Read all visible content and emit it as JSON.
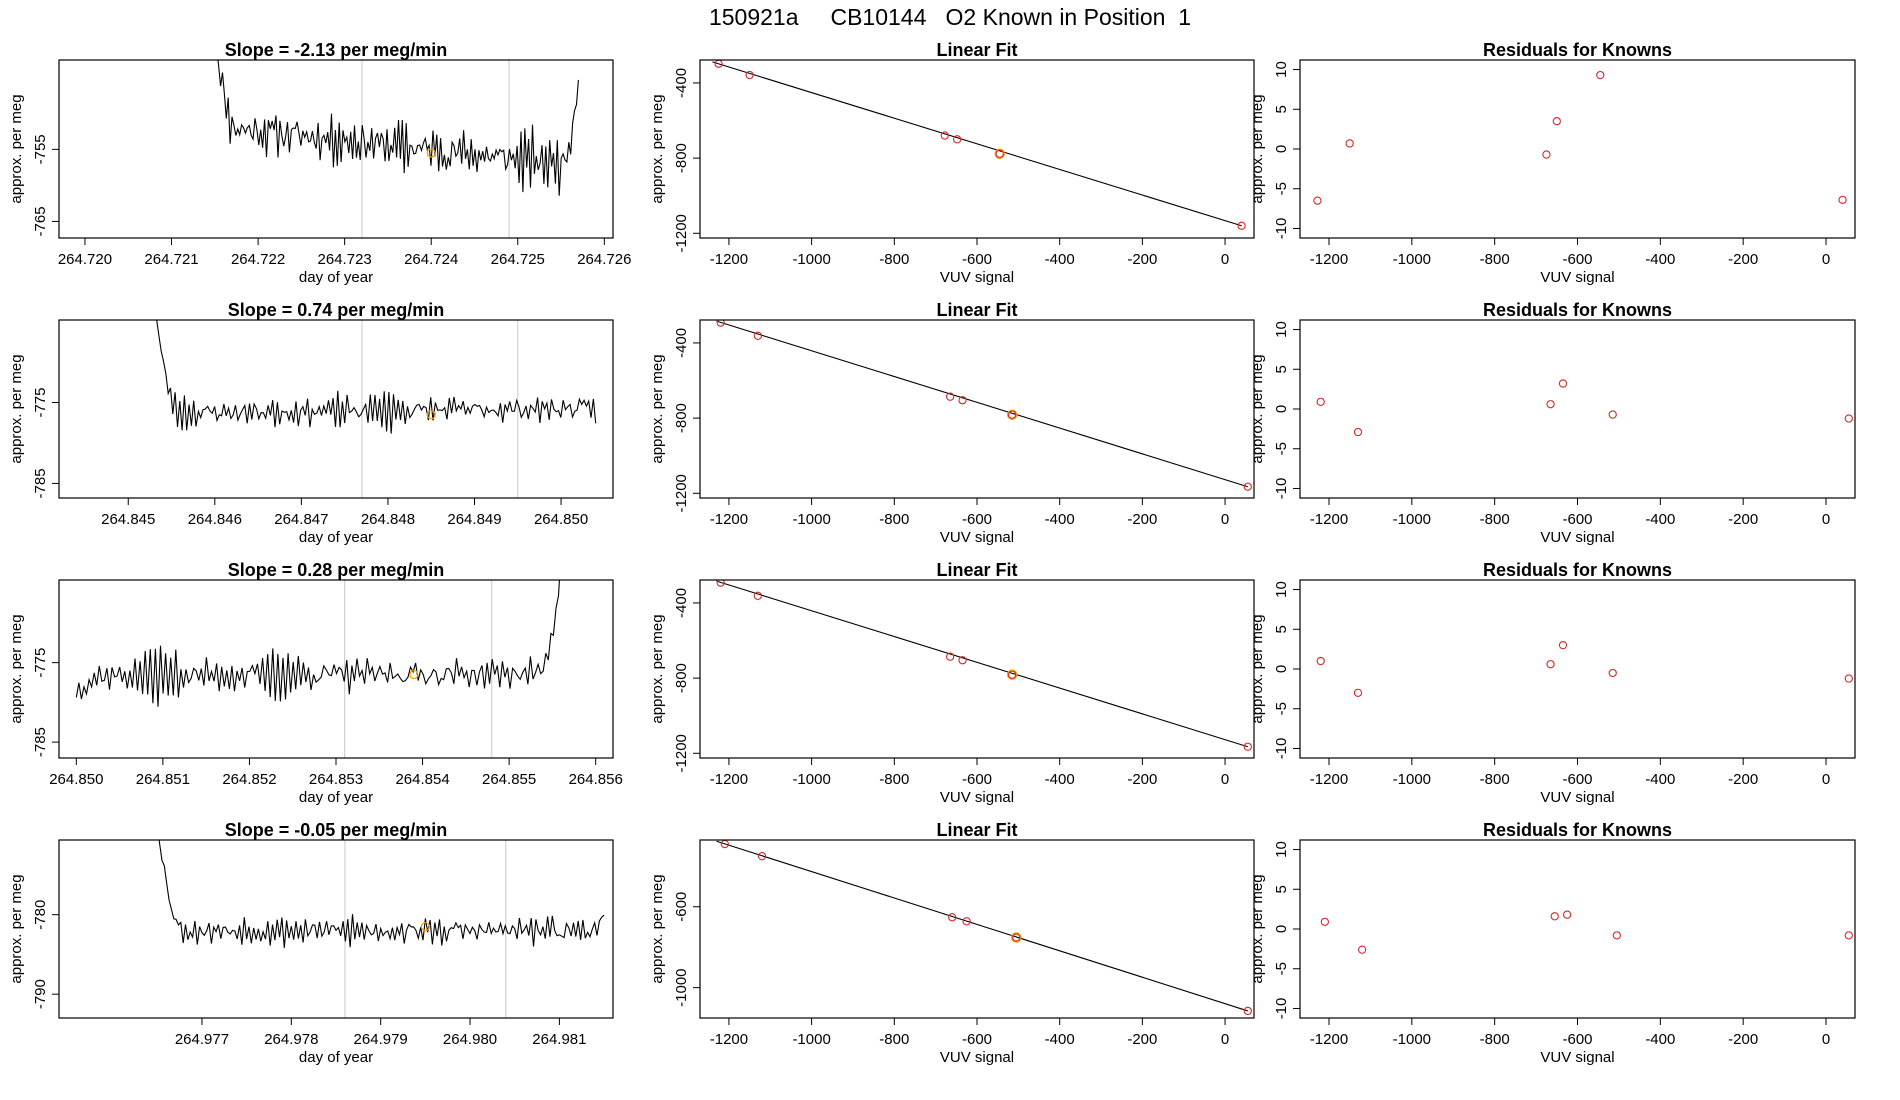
{
  "page": {
    "title": "150921a     CB10144   O2 Known in Position  1"
  },
  "colors": {
    "frame": "#000000",
    "trace": "#000000",
    "vline": "#c8c8c8",
    "known_point": "#d62728",
    "highlight_point": "#ff9a00"
  },
  "chart_data": [
    {
      "type": "line",
      "title": "Slope =  -2.13  per meg/min",
      "xlabel": "day of year",
      "ylabel": "approx. per meg",
      "xlim": [
        264.7197,
        264.7261
      ],
      "ylim": [
        -767.3,
        -742.6
      ],
      "xticks": [
        264.72,
        264.721,
        264.722,
        264.723,
        264.724,
        264.725,
        264.726
      ],
      "xtick_labels": [
        "264.720",
        "264.721",
        "264.722",
        "264.723",
        "264.724",
        "264.725",
        "264.726"
      ],
      "yticks": [
        -765,
        -755
      ],
      "ytick_labels": [
        "-765",
        "-755"
      ],
      "vlines": [
        264.7232,
        264.7249
      ],
      "highlight": {
        "x": 264.724,
        "y": -755.5
      },
      "trace": {
        "x_start": 264.7215,
        "x_end": 264.7257,
        "base": -754.5,
        "amp": 5.5,
        "seed": 11,
        "start_y": -741.0,
        "end_y": -742.0,
        "drift": -5.5
      }
    },
    {
      "type": "scatter",
      "title": "Linear Fit",
      "xlabel": "VUV signal",
      "ylabel": "approx. per meg",
      "xlim": [
        -1270,
        70
      ],
      "ylim": [
        -1225,
        -278
      ],
      "xticks": [
        -1200,
        -1000,
        -800,
        -600,
        -400,
        -200,
        0
      ],
      "xtick_labels": [
        "-1200",
        "-1000",
        "-800",
        "-600",
        "-400",
        "-200",
        "0"
      ],
      "yticks": [
        -1200,
        -800,
        -400
      ],
      "ytick_labels": [
        "-1200",
        "-800",
        "-400"
      ],
      "points": [
        [
          -1225,
          -298
        ],
        [
          -1150,
          -358
        ],
        [
          -678,
          -680
        ],
        [
          -648,
          -700
        ],
        [
          -545,
          -777
        ],
        [
          40,
          -1160
        ]
      ],
      "highlight_index": 4,
      "fit": [
        [
          -1240,
          -288
        ],
        [
          40,
          -1160
        ]
      ]
    },
    {
      "type": "scatter",
      "title": "Residuals for Knowns",
      "xlabel": "VUV signal",
      "ylabel": "approx. per meg",
      "xlim": [
        -1270,
        70
      ],
      "ylim": [
        -11.2,
        11.2
      ],
      "xticks": [
        -1200,
        -1000,
        -800,
        -600,
        -400,
        -200,
        0
      ],
      "xtick_labels": [
        "-1200",
        "-1000",
        "-800",
        "-600",
        "-400",
        "-200",
        "0"
      ],
      "yticks": [
        -10,
        -5,
        0,
        5,
        10
      ],
      "ytick_labels": [
        "-10",
        "-5",
        "0",
        "5",
        "10"
      ],
      "points": [
        [
          -1228,
          -6.5
        ],
        [
          -1150,
          0.7
        ],
        [
          -675,
          -0.7
        ],
        [
          -650,
          3.5
        ],
        [
          -545,
          9.3
        ],
        [
          40,
          -6.4
        ]
      ]
    },
    {
      "type": "line",
      "title": "Slope =  0.74  per meg/min",
      "xlabel": "day of year",
      "ylabel": "approx. per meg",
      "xlim": [
        264.8442,
        264.8506
      ],
      "ylim": [
        -786.8,
        -764.8
      ],
      "xticks": [
        264.845,
        264.846,
        264.847,
        264.848,
        264.849,
        264.85
      ],
      "xtick_labels": [
        "264.845",
        "264.846",
        "264.847",
        "264.848",
        "264.849",
        "264.850"
      ],
      "yticks": [
        -785,
        -775
      ],
      "ytick_labels": [
        "-785",
        "-775"
      ],
      "vlines": [
        264.8477,
        264.8495
      ],
      "highlight": {
        "x": 264.8485,
        "y": -776.5
      },
      "trace": {
        "x_start": 264.8453,
        "x_end": 264.8504,
        "base": -776.0,
        "amp": 2.7,
        "seed": 23,
        "start_y": -762.0,
        "end_y": -776.0,
        "drift": 0.6
      }
    },
    {
      "type": "scatter",
      "title": "Linear Fit",
      "xlabel": "VUV signal",
      "ylabel": "approx. per meg",
      "xlim": [
        -1270,
        70
      ],
      "ylim": [
        -1225,
        -278
      ],
      "xticks": [
        -1200,
        -1000,
        -800,
        -600,
        -400,
        -200,
        0
      ],
      "xtick_labels": [
        "-1200",
        "-1000",
        "-800",
        "-600",
        "-400",
        "-200",
        "0"
      ],
      "yticks": [
        -1200,
        -800,
        -400
      ],
      "ytick_labels": [
        "-1200",
        "-800",
        "-400"
      ],
      "points": [
        [
          -1220,
          -292
        ],
        [
          -1130,
          -362
        ],
        [
          -665,
          -686
        ],
        [
          -635,
          -705
        ],
        [
          -515,
          -782
        ],
        [
          55,
          -1165
        ]
      ],
      "highlight_index": 4,
      "fit": [
        [
          -1230,
          -284
        ],
        [
          55,
          -1165
        ]
      ]
    },
    {
      "type": "scatter",
      "title": "Residuals for Knowns",
      "xlabel": "VUV signal",
      "ylabel": "approx. per meg",
      "xlim": [
        -1270,
        70
      ],
      "ylim": [
        -11.2,
        11.2
      ],
      "xticks": [
        -1200,
        -1000,
        -800,
        -600,
        -400,
        -200,
        0
      ],
      "xtick_labels": [
        "-1200",
        "-1000",
        "-800",
        "-600",
        "-400",
        "-200",
        "0"
      ],
      "yticks": [
        -10,
        -5,
        0,
        5,
        10
      ],
      "ytick_labels": [
        "-10",
        "-5",
        "0",
        "5",
        "10"
      ],
      "points": [
        [
          -1220,
          0.9
        ],
        [
          -1130,
          -2.9
        ],
        [
          -665,
          0.6
        ],
        [
          -635,
          3.2
        ],
        [
          -515,
          -0.7
        ],
        [
          55,
          -1.2
        ]
      ]
    },
    {
      "type": "line",
      "title": "Slope =  0.28  per meg/min",
      "xlabel": "day of year",
      "ylabel": "approx. per meg",
      "xlim": [
        264.8498,
        264.8562
      ],
      "ylim": [
        -787.0,
        -764.6
      ],
      "xticks": [
        264.85,
        264.851,
        264.852,
        264.853,
        264.854,
        264.855,
        264.856
      ],
      "xtick_labels": [
        "264.850",
        "264.851",
        "264.852",
        "264.853",
        "264.854",
        "264.855",
        "264.856"
      ],
      "yticks": [
        -785,
        -775
      ],
      "ytick_labels": [
        "-785",
        "-775"
      ],
      "vlines": [
        264.8531,
        264.8548
      ],
      "highlight": {
        "x": 264.8539,
        "y": -776.5
      },
      "trace": {
        "x_start": 264.85,
        "x_end": 264.8556,
        "base": -776.5,
        "amp": 3.3,
        "seed": 37,
        "start_y": -778.5,
        "end_y": -763.0,
        "drift": 0.3
      }
    },
    {
      "type": "scatter",
      "title": "Linear Fit",
      "xlabel": "VUV signal",
      "ylabel": "approx. per meg",
      "xlim": [
        -1270,
        70
      ],
      "ylim": [
        -1225,
        -278
      ],
      "xticks": [
        -1200,
        -1000,
        -800,
        -600,
        -400,
        -200,
        0
      ],
      "xtick_labels": [
        "-1200",
        "-1000",
        "-800",
        "-600",
        "-400",
        "-200",
        "0"
      ],
      "yticks": [
        -1200,
        -800,
        -400
      ],
      "ytick_labels": [
        "-1200",
        "-800",
        "-400"
      ],
      "points": [
        [
          -1220,
          -292
        ],
        [
          -1130,
          -362
        ],
        [
          -665,
          -686
        ],
        [
          -635,
          -705
        ],
        [
          -515,
          -782
        ],
        [
          55,
          -1165
        ]
      ],
      "highlight_index": 4,
      "fit": [
        [
          -1230,
          -284
        ],
        [
          55,
          -1165
        ]
      ]
    },
    {
      "type": "scatter",
      "title": "Residuals for Knowns",
      "xlabel": "VUV signal",
      "ylabel": "approx. per meg",
      "xlim": [
        -1270,
        70
      ],
      "ylim": [
        -11.2,
        11.2
      ],
      "xticks": [
        -1200,
        -1000,
        -800,
        -600,
        -400,
        -200,
        0
      ],
      "xtick_labels": [
        "-1200",
        "-1000",
        "-800",
        "-600",
        "-400",
        "-200",
        "0"
      ],
      "yticks": [
        -10,
        -5,
        0,
        5,
        10
      ],
      "ytick_labels": [
        "-10",
        "-5",
        "0",
        "5",
        "10"
      ],
      "points": [
        [
          -1220,
          1.0
        ],
        [
          -1130,
          -3.0
        ],
        [
          -665,
          0.6
        ],
        [
          -635,
          3.0
        ],
        [
          -515,
          -0.5
        ],
        [
          55,
          -1.2
        ]
      ]
    },
    {
      "type": "line",
      "title": "Slope =  -0.05  per meg/min",
      "xlabel": "day of year",
      "ylabel": "approx. per meg",
      "xlim": [
        264.9754,
        264.9816
      ],
      "ylim": [
        -793.0,
        -770.6
      ],
      "xticks": [
        264.977,
        264.978,
        264.979,
        264.98,
        264.981
      ],
      "xtick_labels": [
        "264.977",
        "264.978",
        "264.979",
        "264.980",
        "264.981"
      ],
      "yticks": [
        -790,
        -780
      ],
      "ytick_labels": [
        "-790",
        "-780"
      ],
      "vlines": [
        264.9786,
        264.9804
      ],
      "highlight": {
        "x": 264.9795,
        "y": -781.5
      },
      "trace": {
        "x_start": 264.9765,
        "x_end": 264.9815,
        "base": -782.0,
        "amp": 2.8,
        "seed": 53,
        "start_y": -768.0,
        "end_y": -780.5,
        "drift": 0.0
      }
    },
    {
      "type": "scatter",
      "title": "Linear Fit",
      "xlabel": "VUV signal",
      "ylabel": "approx. per meg",
      "xlim": [
        -1270,
        70
      ],
      "ylim": [
        -1150,
        -270
      ],
      "xticks": [
        -1200,
        -1000,
        -800,
        -600,
        -400,
        -200,
        0
      ],
      "xtick_labels": [
        "-1200",
        "-1000",
        "-800",
        "-600",
        "-400",
        "-200",
        "0"
      ],
      "yticks": [
        -1000,
        -600
      ],
      "ytick_labels": [
        "-1000",
        "-600"
      ],
      "points": [
        [
          -1210,
          -290
        ],
        [
          -1120,
          -350
        ],
        [
          -660,
          -652
        ],
        [
          -625,
          -672
        ],
        [
          -505,
          -752
        ],
        [
          55,
          -1115
        ]
      ],
      "highlight_index": 4,
      "fit": [
        [
          -1230,
          -276
        ],
        [
          55,
          -1115
        ]
      ]
    },
    {
      "type": "scatter",
      "title": "Residuals for Knowns",
      "xlabel": "VUV signal",
      "ylabel": "approx. per meg",
      "xlim": [
        -1270,
        70
      ],
      "ylim": [
        -11.2,
        11.2
      ],
      "xticks": [
        -1200,
        -1000,
        -800,
        -600,
        -400,
        -200,
        0
      ],
      "xtick_labels": [
        "-1200",
        "-1000",
        "-800",
        "-600",
        "-400",
        "-200",
        "0"
      ],
      "yticks": [
        -10,
        -5,
        0,
        5,
        10
      ],
      "ytick_labels": [
        "-10",
        "-5",
        "0",
        "5",
        "10"
      ],
      "points": [
        [
          -1210,
          0.9
        ],
        [
          -1120,
          -2.6
        ],
        [
          -655,
          1.6
        ],
        [
          -625,
          1.8
        ],
        [
          -505,
          -0.8
        ],
        [
          55,
          -0.8
        ]
      ]
    }
  ]
}
